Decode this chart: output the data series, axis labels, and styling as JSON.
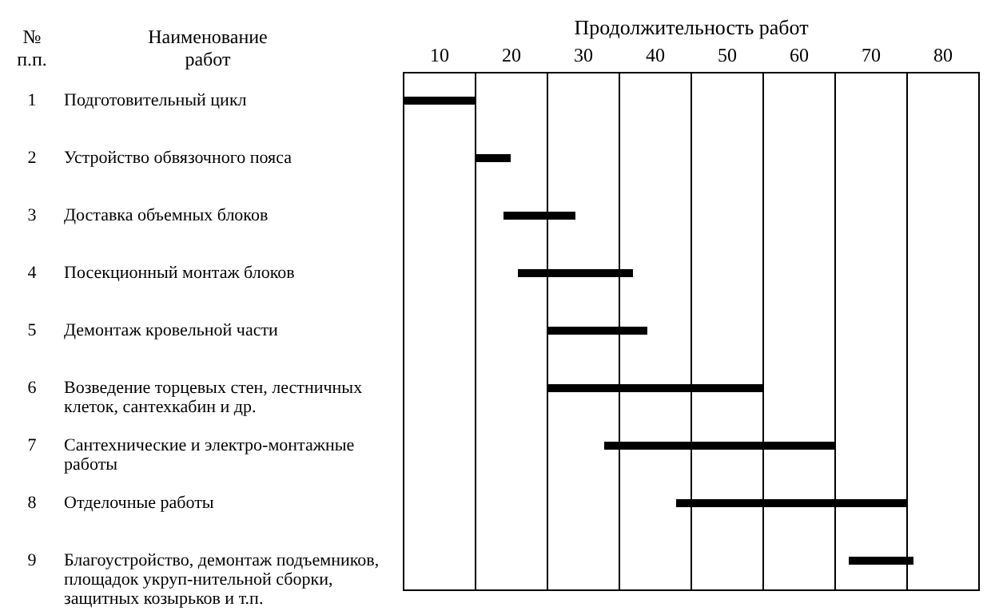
{
  "chart_data": {
    "type": "bar",
    "orientation": "horizontal",
    "xlabel": "Продолжительность работ",
    "ylabel": "Наименование работ",
    "categories": [
      "Подготовительный цикл",
      "Устройство обвязочного пояса",
      "Доставка объемных блоков",
      "Посекционный монтаж блоков",
      "Демонтаж кровельной части",
      "Возведение торцевых стен, лестничных клеток, сантехкабин и др.",
      "Сантехнические и электро-монтажные работы",
      "Отделочные работы",
      "Благоустройство, демонтаж подъемников, площадок укруп-нительной сборки, защитных козырьков и т.п."
    ],
    "annotations": [
      "№ п.п.",
      "1",
      "2",
      "3",
      "4",
      "5",
      "6",
      "7",
      "8",
      "9"
    ],
    "series": [
      {
        "color": "#000000",
        "base": [
          5,
          15,
          19,
          21,
          25,
          25,
          33,
          43,
          67
        ],
        "values": [
          10,
          5,
          10,
          16,
          14,
          10,
          12,
          12,
          9
        ]
      },
      {
        "color": "#000000",
        "base": [
          null,
          null,
          null,
          null,
          null,
          35,
          45,
          55,
          null
        ],
        "values": [
          null,
          null,
          null,
          null,
          null,
          10,
          10,
          10,
          null
        ]
      },
      {
        "color": "#000000",
        "base": [
          null,
          null,
          null,
          null,
          null,
          45,
          55,
          65,
          null
        ],
        "values": [
          null,
          null,
          null,
          null,
          null,
          10,
          10,
          10,
          null
        ]
      }
    ],
    "xlim": [
      5,
      85
    ],
    "xticks": [
      10,
      {
        "value": 15,
        "label": null
      },
      20,
      {
        "value": 25,
        "label": null
      },
      30,
      {
        "value": 35,
        "label": null
      },
      40,
      {
        "value": 45,
        "label": null
      },
      50,
      {
        "value": 55,
        "label": null
      },
      60,
      {
        "value": 65,
        "label": null
      },
      70,
      {
        "value": 75,
        "label": null
      },
      80
    ],
    "grid": "x"
  }
}
